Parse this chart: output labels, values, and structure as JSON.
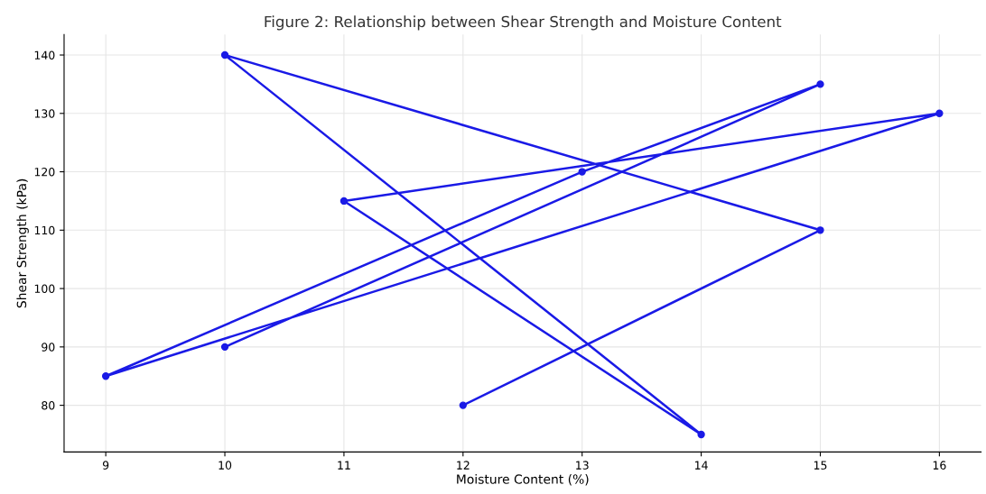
{
  "chart_data": {
    "type": "line",
    "title": "Figure 2: Relationship between Shear Strength and Moisture Content",
    "xlabel": "Moisture Content (%)",
    "ylabel": "Shear Strength (kPa)",
    "x": [
      12,
      15,
      10,
      14,
      11,
      16,
      9,
      13,
      15,
      10
    ],
    "series": [
      {
        "color": "#1a1ae6",
        "values": [
          80,
          110,
          140,
          75,
          115,
          130,
          85,
          120,
          135,
          90
        ]
      }
    ],
    "xlim": [
      8.65,
      16.35
    ],
    "ylim": [
      72,
      143.5
    ],
    "xticks": [
      9,
      10,
      11,
      12,
      13,
      14,
      15,
      16
    ],
    "yticks": [
      80,
      90,
      100,
      110,
      120,
      130,
      140
    ],
    "grid": true,
    "marker": "circle",
    "line_style": "solid"
  }
}
